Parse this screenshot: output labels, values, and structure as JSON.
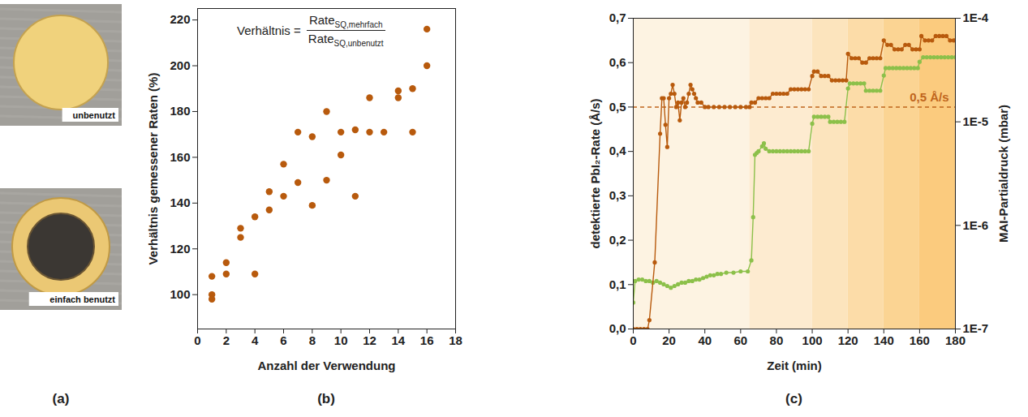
{
  "chart_data": [
    {
      "type": "photo",
      "panel": "(a)",
      "labels": [
        "unbenutzt",
        "einfach benutzt"
      ]
    },
    {
      "type": "scatter",
      "panel": "(b)",
      "xlabel": "Anzahl der Verwendung",
      "ylabel": "Verhältnis gemessener Raten (%)",
      "annotation": {
        "text": "Verhältnis =",
        "numerator": "Rate",
        "numerator_subscript": "SQ,mehrfach",
        "denominator": "Rate",
        "denominator_subscript": "SQ,unbenutzt"
      },
      "x": [
        1,
        1,
        1,
        2,
        2,
        3,
        3,
        4,
        4,
        5,
        5,
        6,
        6,
        7,
        7,
        8,
        8,
        9,
        9,
        10,
        10,
        11,
        11,
        12,
        12,
        13,
        14,
        14,
        15,
        15,
        16,
        16
      ],
      "values": [
        108,
        100,
        98,
        114,
        109,
        129,
        125,
        134,
        109,
        145,
        137,
        157,
        143,
        171,
        149,
        169,
        139,
        180,
        150,
        171,
        161,
        172,
        143,
        186,
        171,
        171,
        189,
        186,
        190,
        171,
        216,
        200
      ],
      "color": "#b85a0d",
      "marker": "circle",
      "xlim": [
        0,
        18
      ],
      "xticks": [
        0,
        2,
        4,
        6,
        8,
        10,
        12,
        14,
        16,
        18
      ],
      "ylim": [
        85,
        225
      ],
      "yticks": [
        100,
        120,
        140,
        160,
        180,
        200,
        220
      ]
    },
    {
      "type": "line",
      "panel": "(c)",
      "xlabel": "Zeit (min)",
      "ylabel": "detektierte PbI₂-Rate (Å/s)",
      "y2label": "MAI-Partialdruck (mbar)",
      "xlim": [
        0,
        180
      ],
      "xticks": [
        0,
        20,
        40,
        60,
        80,
        100,
        120,
        140,
        160,
        180
      ],
      "ylim": [
        0,
        0.7
      ],
      "yticks": [
        {
          "value": 0,
          "label": "0,0"
        },
        {
          "value": 0.1,
          "label": "0,1"
        },
        {
          "value": 0.2,
          "label": "0,2"
        },
        {
          "value": 0.3,
          "label": "0,3"
        },
        {
          "value": 0.4,
          "label": "0,4"
        },
        {
          "value": 0.5,
          "label": "0,5"
        },
        {
          "value": 0.6,
          "label": "0,6"
        },
        {
          "value": 0.7,
          "label": "0,7"
        }
      ],
      "y2lim": [
        1e-07,
        0.0001
      ],
      "y2ticks": [
        {
          "value": 1e-07,
          "label": "1E-7"
        },
        {
          "value": 1e-06,
          "label": "1E-6"
        },
        {
          "value": 1e-05,
          "label": "1E-5"
        },
        {
          "value": 0.0001,
          "label": "1E-4"
        }
      ],
      "log": "y2",
      "reference": {
        "value": 0.5,
        "label": "0,5 Å/s",
        "color": "#c0651c",
        "line_style": "dashed"
      },
      "bands": [
        {
          "x0": 0,
          "x1": 65,
          "color": "#fdf3e2"
        },
        {
          "x0": 65,
          "x1": 100,
          "color": "#fdebd0"
        },
        {
          "x0": 100,
          "x1": 120,
          "color": "#fce4bd"
        },
        {
          "x0": 120,
          "x1": 140,
          "color": "#fcdca8"
        },
        {
          "x0": 140,
          "x1": 160,
          "color": "#fbd493"
        },
        {
          "x0": 160,
          "x1": 180,
          "color": "#fbcb7e"
        }
      ],
      "series": [
        {
          "color": "#b85a0d",
          "marker": "circle",
          "x": [
            0,
            2,
            4,
            6,
            8,
            9,
            12,
            15,
            16,
            17,
            18,
            19,
            20,
            21,
            22,
            23,
            24,
            25,
            26,
            27,
            28,
            29,
            30,
            31,
            32,
            33,
            34,
            35,
            36,
            38,
            40,
            42,
            45,
            48,
            51,
            54,
            57,
            60,
            63,
            65,
            66,
            68,
            70,
            72,
            74,
            76,
            78,
            80,
            82,
            84,
            86,
            88,
            90,
            92,
            94,
            96,
            98,
            100,
            101,
            103,
            105,
            107,
            109,
            111,
            113,
            115,
            117,
            119,
            120,
            122,
            124,
            126,
            128,
            130,
            132,
            134,
            136,
            138,
            140,
            142,
            144,
            146,
            148,
            150,
            152,
            154,
            156,
            158,
            160,
            161,
            163,
            165,
            167,
            169,
            171,
            173,
            175,
            177,
            179,
            180
          ],
          "values": [
            0,
            0,
            0,
            0,
            0,
            0.02,
            0.15,
            0.44,
            0.52,
            0.52,
            0.46,
            0.41,
            0.52,
            0.53,
            0.55,
            0.53,
            0.5,
            0.51,
            0.47,
            0.51,
            0.52,
            0.5,
            0.51,
            0.53,
            0.55,
            0.54,
            0.53,
            0.52,
            0.51,
            0.51,
            0.5,
            0.5,
            0.5,
            0.5,
            0.5,
            0.5,
            0.5,
            0.5,
            0.5,
            0.5,
            0.51,
            0.51,
            0.52,
            0.52,
            0.52,
            0.52,
            0.53,
            0.53,
            0.53,
            0.53,
            0.53,
            0.54,
            0.54,
            0.54,
            0.54,
            0.54,
            0.54,
            0.57,
            0.58,
            0.58,
            0.57,
            0.57,
            0.57,
            0.56,
            0.56,
            0.56,
            0.56,
            0.56,
            0.62,
            0.61,
            0.61,
            0.61,
            0.6,
            0.6,
            0.61,
            0.61,
            0.61,
            0.61,
            0.65,
            0.64,
            0.64,
            0.63,
            0.63,
            0.63,
            0.64,
            0.64,
            0.63,
            0.63,
            0.63,
            0.66,
            0.65,
            0.65,
            0.65,
            0.66,
            0.66,
            0.66,
            0.66,
            0.65,
            0.65,
            0.65
          ]
        },
        {
          "color": "#8cc04a",
          "marker": "circle",
          "axis": "y2",
          "x": [
            0,
            1,
            3,
            5,
            7,
            9,
            11,
            13,
            15,
            17,
            19,
            21,
            23,
            25,
            27,
            29,
            31,
            33,
            35,
            37,
            39,
            41,
            43,
            45,
            47,
            49,
            52,
            56,
            60,
            64,
            66,
            67,
            68,
            69,
            70,
            72,
            73,
            74,
            76,
            78,
            80,
            82,
            84,
            86,
            88,
            90,
            92,
            94,
            96,
            98,
            100,
            101,
            103,
            105,
            107,
            109,
            110,
            112,
            114,
            116,
            118,
            120,
            121,
            123,
            125,
            127,
            129,
            130,
            132,
            134,
            136,
            138,
            140,
            141,
            143,
            145,
            147,
            149,
            151,
            153,
            155,
            157,
            159,
            160,
            162,
            164,
            166,
            168,
            170,
            172,
            174,
            176,
            178,
            180
          ],
          "values": [
            1.8e-07,
            2.9e-07,
            3e-07,
            3e-07,
            2.9e-07,
            2.9e-07,
            2.8e-07,
            2.9e-07,
            2.8e-07,
            2.7e-07,
            2.6e-07,
            2.5e-07,
            2.6e-07,
            2.7e-07,
            2.8e-07,
            2.8e-07,
            2.9e-07,
            2.9e-07,
            3e-07,
            3e-07,
            3.1e-07,
            3.2e-07,
            3.3e-07,
            3.3e-07,
            3.4e-07,
            3.4e-07,
            3.5e-07,
            3.5e-07,
            3.6e-07,
            3.6e-07,
            4.6e-07,
            1.2e-06,
            4.8e-06,
            5e-06,
            5.2e-06,
            5.8e-06,
            6.2e-06,
            5.5e-06,
            5.2e-06,
            5.2e-06,
            5.2e-06,
            5.2e-06,
            5.2e-06,
            5.2e-06,
            5.2e-06,
            5.2e-06,
            5.2e-06,
            5.2e-06,
            5.2e-06,
            5.2e-06,
            9.6e-06,
            1.12e-05,
            1.12e-05,
            1.12e-05,
            1.12e-05,
            1.12e-05,
            1e-05,
            1e-05,
            1e-05,
            1e-05,
            1e-05,
            2.1e-05,
            2.35e-05,
            2.35e-05,
            2.35e-05,
            2.35e-05,
            2.35e-05,
            2e-05,
            2e-05,
            2e-05,
            2e-05,
            2e-05,
            2.8e-05,
            3.3e-05,
            3.3e-05,
            3.3e-05,
            3.3e-05,
            3.3e-05,
            3.3e-05,
            3.3e-05,
            3.3e-05,
            3.3e-05,
            3.3e-05,
            3.8e-05,
            4.2e-05,
            4.2e-05,
            4.2e-05,
            4.2e-05,
            4.2e-05,
            4.2e-05,
            4.2e-05,
            4.2e-05,
            4.2e-05,
            4.2e-05
          ]
        }
      ]
    }
  ]
}
